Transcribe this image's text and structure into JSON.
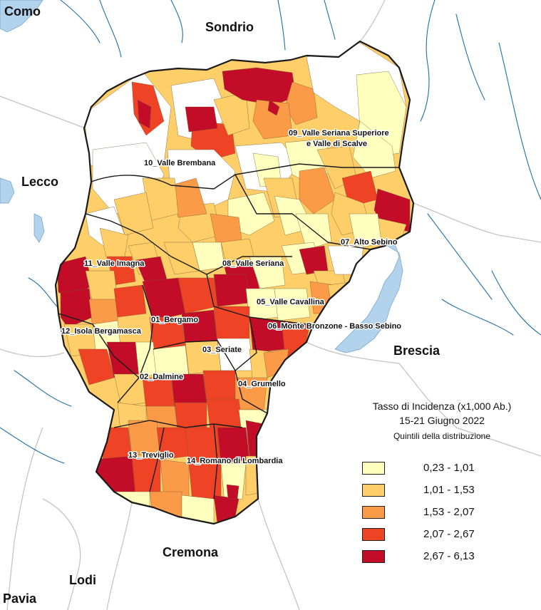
{
  "neighbors": {
    "como": "Como",
    "sondrio": "Sondrio",
    "lecco": "Lecco",
    "brescia": "Brescia",
    "cremona": "Cremona",
    "lodi": "Lodi",
    "pavia": "Pavia"
  },
  "districts": [
    "09_Valle Seriana Superiore",
    "e Valle di Scalve",
    "10_Valle Brembana",
    "07_Alto Sebino",
    "11_Valle Imagna",
    "08_Valle Seriana",
    "05_Valle Cavallina",
    "01_Bergamo",
    "06_Monte Bronzone - Basso Sebino",
    "12_Isola Bergamasca",
    "03_Seriate",
    "02_Dalmine",
    "04_Grumello",
    "13_Treviglio",
    "14_Romano di Lombardia"
  ],
  "legend": {
    "title_line1": "Tasso di Incidenza (x1,000 Ab.)",
    "title_line2": "15-21 Giugno 2022",
    "subtitle": "Quintili della distribuzione",
    "classes": [
      {
        "range": "0,23 - 1,01",
        "color": "#ffffbe"
      },
      {
        "range": "1,01 - 1,53",
        "color": "#fecf68"
      },
      {
        "range": "1,53 - 2,07",
        "color": "#fb9a47"
      },
      {
        "range": "2,07 - 2,67",
        "color": "#ee4325"
      },
      {
        "range": "2,67 - 6,13",
        "color": "#c30d28"
      }
    ]
  },
  "colors": {
    "lake": "#b3d2ec",
    "river": "#1f6fa8",
    "border": "#1a1a1a",
    "neighbor_border": "#bdbdbd"
  }
}
